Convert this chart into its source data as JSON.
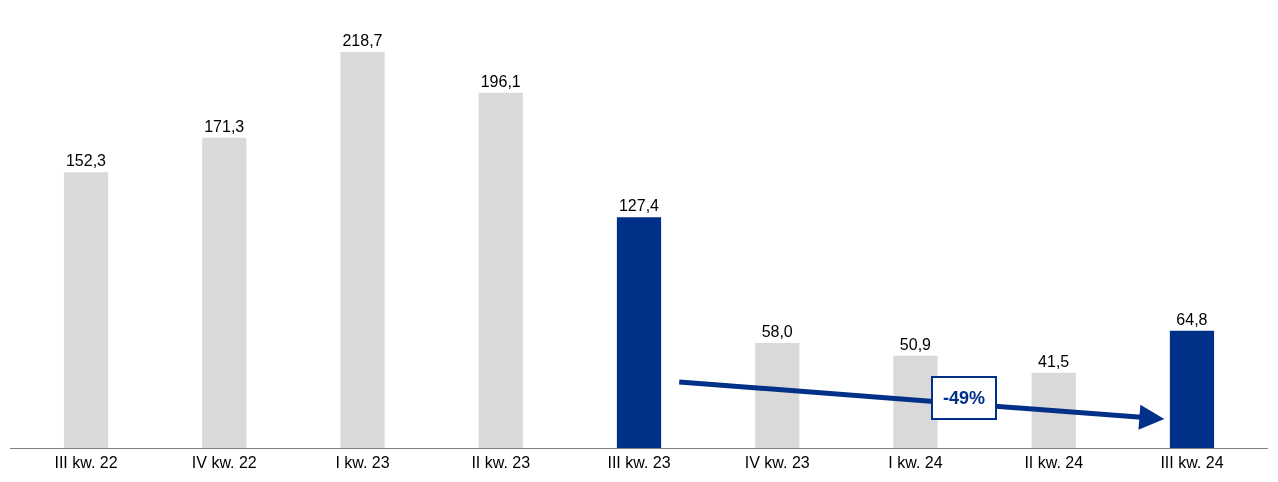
{
  "chart_data": {
    "type": "bar",
    "categories": [
      "III kw. 22",
      "IV kw. 22",
      "I kw. 23",
      "II kw. 23",
      "III kw. 23",
      "IV kw. 23",
      "I kw. 24",
      "II kw. 24",
      "III kw. 24"
    ],
    "values": [
      152.3,
      171.3,
      218.7,
      196.1,
      127.4,
      58.0,
      50.9,
      41.5,
      64.8
    ],
    "colors": [
      "#d9d9d9",
      "#d9d9d9",
      "#d9d9d9",
      "#d9d9d9",
      "#003087",
      "#d9d9d9",
      "#d9d9d9",
      "#d9d9d9",
      "#003087"
    ],
    "value_labels": [
      "152,3",
      "171,3",
      "218,7",
      "196,1",
      "127,4",
      "58,0",
      "50,9",
      "41,5",
      "64,8"
    ],
    "annotations": [
      "-49%"
    ],
    "legend": false
  }
}
